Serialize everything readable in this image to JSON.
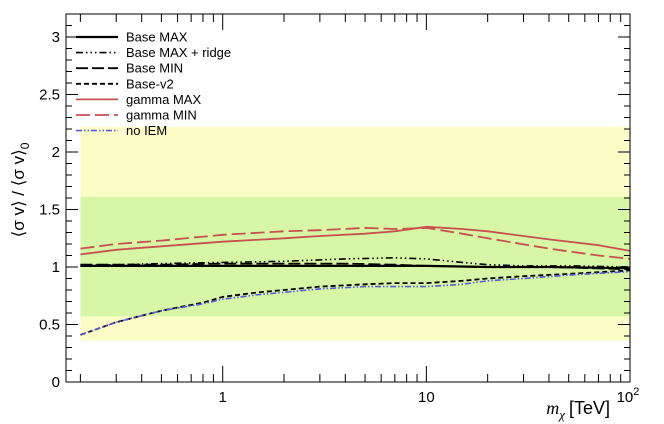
{
  "chart_data": {
    "type": "line",
    "xscale": "log",
    "xlim": [
      0.17,
      100
    ],
    "ylim": [
      0,
      3.2
    ],
    "xlabel": {
      "symbol": "m",
      "subscript": "χ",
      "unit": "[TeV]"
    },
    "ylabel": "⟨σ v⟩ / ⟨σ v⟩",
    "ylabel_subscript": "0",
    "yticks": [
      {
        "value": 0,
        "label": "0"
      },
      {
        "value": 0.5,
        "label": "0.5"
      },
      {
        "value": 1,
        "label": "1"
      },
      {
        "value": 1.5,
        "label": "1.5"
      },
      {
        "value": 2,
        "label": "2"
      },
      {
        "value": 2.5,
        "label": "2.5"
      },
      {
        "value": 3,
        "label": "3"
      }
    ],
    "xticks": [
      {
        "value": 1,
        "label": "1",
        "sup": ""
      },
      {
        "value": 10,
        "label": "10",
        "sup": ""
      },
      {
        "value": 100,
        "label": "10",
        "sup": "2"
      }
    ],
    "bands": [
      {
        "name": "2-sigma",
        "ymin": 0.36,
        "ymax": 2.22,
        "xmin": 0.2,
        "xmax": 100,
        "color": "#fdfdc7"
      },
      {
        "name": "1-sigma",
        "ymin": 0.57,
        "ymax": 1.61,
        "xmin": 0.2,
        "xmax": 100,
        "color": "#d7f7a6"
      }
    ],
    "series": [
      {
        "name": "Base MAX",
        "color": "#000000",
        "dash": "",
        "width": 2.2,
        "x": [
          0.2,
          0.3,
          0.5,
          1,
          2,
          4,
          7,
          10,
          20,
          40,
          100
        ],
        "y": [
          1.01,
          1.01,
          1.01,
          1.01,
          1.01,
          1.01,
          1.01,
          1.01,
          1.0,
          1.0,
          0.99
        ]
      },
      {
        "name": "Base MAX + ridge",
        "color": "#000000",
        "dash": "7 3 1.5 3 1.5 3 1.5 3",
        "width": 1.6,
        "x": [
          0.2,
          0.3,
          0.5,
          1,
          2,
          4,
          7,
          10,
          15,
          20,
          30,
          50,
          100
        ],
        "y": [
          1.01,
          1.02,
          1.03,
          1.04,
          1.05,
          1.07,
          1.08,
          1.07,
          1.04,
          1.02,
          1.01,
          1.01,
          1.0
        ]
      },
      {
        "name": "Base MIN",
        "color": "#000000",
        "dash": "12 4",
        "width": 1.8,
        "x": [
          0.2,
          0.3,
          0.5,
          1,
          2,
          4,
          7,
          10,
          20,
          40,
          100
        ],
        "y": [
          1.02,
          1.02,
          1.02,
          1.03,
          1.03,
          1.03,
          1.02,
          1.01,
          1.0,
          1.0,
          0.98
        ]
      },
      {
        "name": "Base-v2",
        "color": "#000000",
        "dash": "5 3",
        "width": 1.8,
        "x": [
          0.2,
          0.3,
          0.5,
          0.8,
          1,
          1.5,
          2,
          3,
          5,
          7,
          10,
          15,
          20,
          30,
          50,
          100
        ],
        "y": [
          0.41,
          0.52,
          0.62,
          0.69,
          0.74,
          0.78,
          0.8,
          0.83,
          0.85,
          0.86,
          0.86,
          0.88,
          0.9,
          0.92,
          0.94,
          0.97
        ]
      },
      {
        "name": "gamma MAX",
        "color": "#c8504e",
        "dash": "",
        "width": 1.8,
        "x": [
          0.2,
          0.3,
          0.5,
          1,
          2,
          3,
          5,
          7,
          10,
          15,
          20,
          40,
          70,
          100
        ],
        "y": [
          1.11,
          1.15,
          1.18,
          1.22,
          1.25,
          1.27,
          1.29,
          1.31,
          1.35,
          1.33,
          1.31,
          1.24,
          1.19,
          1.14
        ]
      },
      {
        "name": "gamma MIN",
        "color": "#c8504e",
        "dash": "14 5",
        "width": 1.8,
        "x": [
          0.2,
          0.3,
          0.5,
          1,
          2,
          3,
          5,
          7,
          10,
          15,
          20,
          40,
          70,
          100
        ],
        "y": [
          1.16,
          1.2,
          1.23,
          1.28,
          1.31,
          1.32,
          1.34,
          1.33,
          1.34,
          1.29,
          1.25,
          1.16,
          1.1,
          1.07
        ]
      },
      {
        "name": "no IEM",
        "color": "#5b5be0",
        "dash": "6 2 1.5 2 1.5 2",
        "width": 1.6,
        "x": [
          0.2,
          0.3,
          0.5,
          0.8,
          1,
          1.5,
          2,
          3,
          5,
          7,
          10,
          15,
          20,
          30,
          50,
          100
        ],
        "y": [
          0.41,
          0.52,
          0.62,
          0.68,
          0.72,
          0.76,
          0.78,
          0.81,
          0.83,
          0.83,
          0.83,
          0.85,
          0.88,
          0.9,
          0.93,
          0.96
        ]
      }
    ],
    "legend": {
      "position": "top-left"
    }
  }
}
